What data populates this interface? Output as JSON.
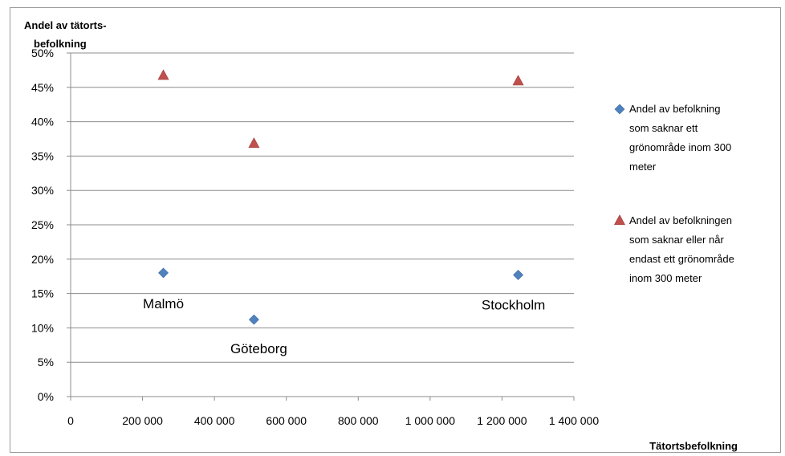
{
  "chart_data": {
    "type": "scatter",
    "title": "",
    "ylabel_lines": [
      "Andel av tätorts-",
      "befolkning"
    ],
    "xlabel": "Tätortsbefolkning",
    "xlim": [
      0,
      1400000
    ],
    "ylim": [
      0,
      0.5
    ],
    "x_tick_values": [
      0,
      200000,
      400000,
      600000,
      800000,
      1000000,
      1200000,
      1400000
    ],
    "x_tick_labels": [
      "0",
      "200 000",
      "400 000",
      "600 000",
      "800 000",
      "1 000 000",
      "1 200 000",
      "1 400 000"
    ],
    "y_tick_values": [
      0,
      0.05,
      0.1,
      0.15,
      0.2,
      0.25,
      0.3,
      0.35,
      0.4,
      0.45,
      0.5
    ],
    "y_tick_labels": [
      "0%",
      "5%",
      "10%",
      "15%",
      "20%",
      "25%",
      "30%",
      "35%",
      "40%",
      "45%",
      "50%"
    ],
    "grid": "horizontal",
    "legend_position": "right",
    "series": [
      {
        "name_lines": [
          "Andel av befolkning",
          "som saknar  ett",
          "grönområde inom 300",
          "meter"
        ],
        "marker": "diamond",
        "color": "#4f81bd",
        "points": [
          {
            "x": 258000,
            "y": 0.18
          },
          {
            "x": 510000,
            "y": 0.112
          },
          {
            "x": 1245000,
            "y": 0.177
          }
        ]
      },
      {
        "name_lines": [
          "Andel av befolkningen",
          "som saknar  eller når",
          "endast ett grönområde",
          "inom 300 meter"
        ],
        "marker": "triangle",
        "color": "#c0504d",
        "points": [
          {
            "x": 258000,
            "y": 0.467
          },
          {
            "x": 510000,
            "y": 0.368
          },
          {
            "x": 1245000,
            "y": 0.459
          }
        ]
      }
    ],
    "annotations": [
      {
        "text": "Malmö",
        "x": 258000,
        "y": 0.18
      },
      {
        "text": "Göteborg",
        "x": 510000,
        "y": 0.112
      },
      {
        "text": "Stockholm",
        "x": 1245000,
        "y": 0.177
      }
    ]
  }
}
